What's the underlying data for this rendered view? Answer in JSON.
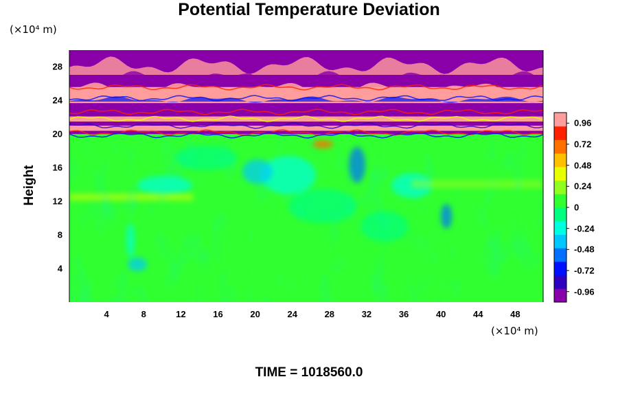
{
  "chart_data": {
    "type": "heatmap",
    "title": "Potential Temperature Deviation",
    "ylabel": "Height",
    "x_unit": "(×10⁴ m)",
    "y_unit": "(×10⁴ m)",
    "footer": "TIME = 1018560.0",
    "xlim": [
      0,
      51
    ],
    "ylim": [
      0,
      30
    ],
    "x_ticks": [
      4,
      8,
      12,
      16,
      20,
      24,
      28,
      32,
      36,
      40,
      44,
      48
    ],
    "y_ticks": [
      4,
      8,
      12,
      16,
      20,
      24,
      28
    ],
    "colorbar": {
      "range": [
        -1.08,
        1.08
      ],
      "tick_values": [
        0.96,
        0.72,
        0.48,
        0.24,
        0,
        -0.24,
        -0.48,
        -0.72,
        -0.96
      ],
      "tick_labels": [
        "0.96",
        "0.72",
        "0.48",
        "0.24",
        "0",
        "-0.24",
        "-0.48",
        "-0.72",
        "-0.96"
      ],
      "colors": [
        "#8a00a8",
        "#3000c0",
        "#0010ff",
        "#0070ff",
        "#00c8ff",
        "#00ffe0",
        "#00ff80",
        "#30ff30",
        "#90ff20",
        "#e8ff00",
        "#ffc000",
        "#ff7000",
        "#ff2000",
        "#ff9c9c"
      ]
    },
    "layers": [
      {
        "y_range": [
          0,
          20
        ],
        "value": 0
      },
      {
        "y_range": [
          20,
          20.4
        ],
        "value": -0.96
      },
      {
        "y_range": [
          20.4,
          21
        ],
        "value": 0.96
      },
      {
        "y_range": [
          21,
          21.5
        ],
        "value": -0.96
      },
      {
        "y_range": [
          21.5,
          22.1
        ],
        "value": 0.96
      },
      {
        "y_range": [
          22.1,
          22.6
        ],
        "value": -0.96
      },
      {
        "y_range": [
          22.6,
          23.7
        ],
        "value": -0.96
      },
      {
        "y_range": [
          23.7,
          25.6
        ],
        "value": 0.96
      },
      {
        "y_range": [
          25.6,
          30
        ],
        "value": -0.96
      }
    ]
  }
}
